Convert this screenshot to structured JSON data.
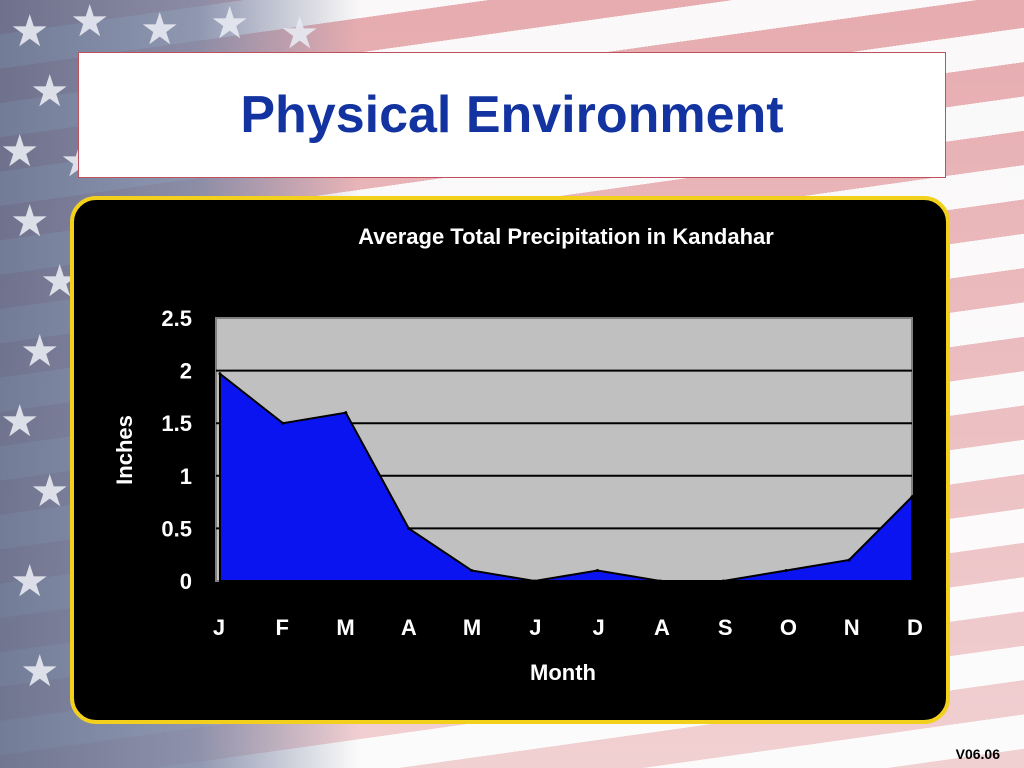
{
  "slide": {
    "title": "Physical Environment",
    "version": "V06.06"
  },
  "colors": {
    "title": "#1334a0",
    "panel_border": "#f3d01b",
    "plot_bg": "#c0c0c0",
    "area_fill": "#0a14f0"
  },
  "chart_data": {
    "type": "area",
    "title": "Average Total Precipitation in Kandahar",
    "xlabel": "Month",
    "ylabel": "Inches",
    "categories": [
      "J",
      "F",
      "M",
      "A",
      "M",
      "J",
      "J",
      "A",
      "S",
      "O",
      "N",
      "D"
    ],
    "series": [
      {
        "values": [
          1.97,
          1.5,
          1.6,
          0.5,
          0.1,
          0,
          0.1,
          0,
          0,
          0.1,
          0.2,
          0.8
        ]
      }
    ],
    "ylim": [
      0,
      2.5
    ],
    "yticks": [
      "0",
      "0.5",
      "1",
      "1.5",
      "2",
      "2.5"
    ],
    "grid": true,
    "legend": "none"
  }
}
